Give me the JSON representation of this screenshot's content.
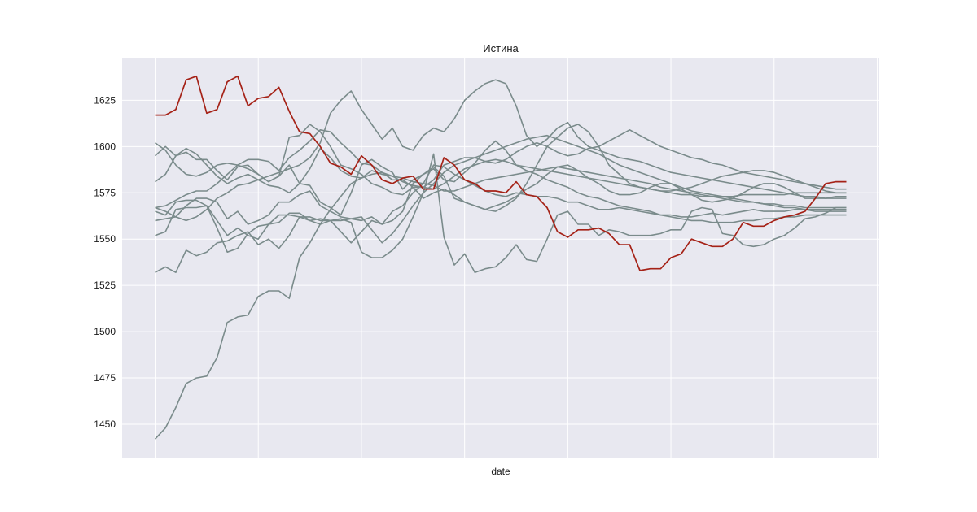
{
  "chart_data": {
    "type": "line",
    "title": "Истина",
    "xlabel": "date",
    "ylabel": "",
    "ylim": [
      1432,
      1648
    ],
    "yticks": [
      1450,
      1475,
      1500,
      1525,
      1550,
      1575,
      1600,
      1625
    ],
    "x": [
      0,
      1,
      2,
      3,
      4,
      5,
      6,
      7,
      8,
      9,
      10,
      11,
      12,
      13,
      14,
      15,
      16,
      17,
      18,
      19,
      20,
      21,
      22,
      23,
      24,
      25,
      26,
      27,
      28,
      29,
      30,
      31,
      32,
      33,
      34,
      35,
      36,
      37,
      38,
      39,
      40,
      41,
      42,
      43,
      44,
      45,
      46,
      47,
      48,
      49,
      50,
      51,
      52,
      53,
      54,
      55,
      56,
      57,
      58,
      59,
      60,
      61,
      62,
      63,
      64,
      65,
      66,
      67
    ],
    "xlim": [
      -3.2,
      70.2
    ],
    "xgrid": [
      0,
      10,
      20,
      30,
      40,
      50,
      60,
      70
    ],
    "grid": true,
    "legend": "none",
    "colors": {
      "background": "#e8e8f0",
      "grid": "#ffffff",
      "sample": "#7a8b8b",
      "truth": "#a52217"
    },
    "series": [
      {
        "role": "sample",
        "values": [
          1442,
          1448,
          1459,
          1472,
          1475,
          1476,
          1486,
          1505,
          1508,
          1509,
          1519,
          1522,
          1522,
          1518,
          1540,
          1548,
          1558,
          1566,
          1573,
          1580,
          1583,
          1587,
          1585,
          1584,
          1583,
          1581,
          1580,
          1579,
          1576,
          1576,
          1578,
          1580,
          1582,
          1583,
          1584,
          1585,
          1586,
          1587,
          1588,
          1589,
          1588,
          1587,
          1586,
          1585,
          1584,
          1583,
          1582,
          1581,
          1580,
          1578,
          1577,
          1576,
          1575,
          1574,
          1573,
          1572,
          1571,
          1570,
          1570,
          1569,
          1569,
          1568,
          1568,
          1567,
          1567,
          1567,
          1567,
          1567
        ]
      },
      {
        "role": "sample",
        "values": [
          1532,
          1535,
          1532,
          1544,
          1541,
          1543,
          1548,
          1549,
          1552,
          1554,
          1547,
          1550,
          1545,
          1552,
          1562,
          1562,
          1560,
          1560,
          1561,
          1559,
          1543,
          1540,
          1540,
          1544,
          1550,
          1562,
          1575,
          1596,
          1551,
          1536,
          1542,
          1532,
          1534,
          1535,
          1540,
          1547,
          1539,
          1538,
          1550,
          1563,
          1565,
          1558,
          1558,
          1552,
          1555,
          1554,
          1552,
          1552,
          1552,
          1553,
          1555,
          1555,
          1565,
          1567,
          1566,
          1553,
          1552,
          1547,
          1546,
          1547,
          1550,
          1552,
          1556,
          1561,
          1562,
          1564,
          1567,
          1567
        ]
      },
      {
        "role": "sample",
        "values": [
          1552,
          1554,
          1566,
          1567,
          1567,
          1568,
          1560,
          1552,
          1556,
          1552,
          1550,
          1558,
          1559,
          1564,
          1564,
          1560,
          1561,
          1560,
          1554,
          1548,
          1554,
          1560,
          1558,
          1565,
          1568,
          1575,
          1580,
          1590,
          1589,
          1585,
          1582,
          1579,
          1576,
          1574,
          1573,
          1575,
          1574,
          1573,
          1573,
          1572,
          1570,
          1570,
          1568,
          1566,
          1566,
          1567,
          1566,
          1565,
          1564,
          1563,
          1563,
          1562,
          1562,
          1563,
          1564,
          1563,
          1564,
          1565,
          1566,
          1565,
          1565,
          1565,
          1566,
          1566,
          1565,
          1565,
          1565,
          1565
        ]
      },
      {
        "role": "sample",
        "values": [
          1560,
          1561,
          1562,
          1568,
          1572,
          1572,
          1570,
          1561,
          1565,
          1558,
          1560,
          1563,
          1570,
          1570,
          1574,
          1576,
          1568,
          1565,
          1562,
          1561,
          1560,
          1562,
          1558,
          1560,
          1565,
          1580,
          1585,
          1589,
          1584,
          1572,
          1570,
          1568,
          1566,
          1568,
          1570,
          1573,
          1577,
          1580,
          1585,
          1589,
          1590,
          1587,
          1583,
          1580,
          1576,
          1574,
          1574,
          1575,
          1578,
          1580,
          1580,
          1577,
          1574,
          1571,
          1570,
          1571,
          1572,
          1575,
          1578,
          1580,
          1580,
          1578,
          1575,
          1572,
          1572,
          1572,
          1573,
          1573
        ]
      },
      {
        "role": "sample",
        "values": [
          1567,
          1568,
          1571,
          1574,
          1576,
          1576,
          1580,
          1585,
          1590,
          1593,
          1593,
          1592,
          1587,
          1594,
          1598,
          1603,
          1609,
          1608,
          1602,
          1597,
          1591,
          1590,
          1586,
          1582,
          1582,
          1578,
          1578,
          1582,
          1590,
          1592,
          1594,
          1594,
          1592,
          1591,
          1593,
          1597,
          1600,
          1602,
          1600,
          1597,
          1595,
          1596,
          1599,
          1600,
          1603,
          1606,
          1609,
          1606,
          1603,
          1600,
          1598,
          1596,
          1594,
          1593,
          1591,
          1590,
          1588,
          1586,
          1585,
          1584,
          1583,
          1582,
          1581,
          1580,
          1579,
          1578,
          1577,
          1577
        ]
      },
      {
        "role": "sample",
        "values": [
          1581,
          1585,
          1595,
          1597,
          1593,
          1593,
          1587,
          1582,
          1589,
          1590,
          1585,
          1581,
          1584,
          1590,
          1580,
          1579,
          1570,
          1567,
          1563,
          1575,
          1590,
          1593,
          1589,
          1586,
          1577,
          1582,
          1585,
          1588,
          1582,
          1581,
          1586,
          1591,
          1598,
          1603,
          1598,
          1590,
          1587,
          1585,
          1582,
          1580,
          1578,
          1575,
          1573,
          1572,
          1570,
          1568,
          1567,
          1566,
          1565,
          1563,
          1562,
          1561,
          1560,
          1560,
          1559,
          1559,
          1559,
          1560,
          1560,
          1561,
          1561,
          1562,
          1562,
          1563,
          1563,
          1563,
          1563,
          1563
        ]
      },
      {
        "role": "sample",
        "values": [
          1602,
          1598,
          1590,
          1585,
          1584,
          1586,
          1590,
          1591,
          1590,
          1588,
          1585,
          1581,
          1584,
          1605,
          1606,
          1612,
          1608,
          1600,
          1590,
          1588,
          1585,
          1580,
          1578,
          1575,
          1574,
          1578,
          1572,
          1575,
          1577,
          1574,
          1570,
          1568,
          1566,
          1565,
          1568,
          1572,
          1580,
          1590,
          1600,
          1605,
          1610,
          1612,
          1608,
          1600,
          1590,
          1585,
          1580,
          1578,
          1577,
          1576,
          1576,
          1577,
          1578,
          1580,
          1582,
          1584,
          1585,
          1586,
          1587,
          1587,
          1586,
          1584,
          1582,
          1580,
          1578,
          1576,
          1575,
          1575
        ]
      },
      {
        "role": "sample",
        "values": [
          1595,
          1600,
          1595,
          1599,
          1596,
          1590,
          1584,
          1580,
          1583,
          1585,
          1582,
          1579,
          1578,
          1575,
          1580,
          1588,
          1599,
          1594,
          1587,
          1584,
          1583,
          1585,
          1586,
          1584,
          1581,
          1579,
          1578,
          1577,
          1580,
          1584,
          1588,
          1590,
          1592,
          1593,
          1592,
          1590,
          1589,
          1588,
          1587,
          1586,
          1585,
          1584,
          1583,
          1582,
          1581,
          1580,
          1579,
          1578,
          1577,
          1576,
          1575,
          1574,
          1574,
          1573,
          1573,
          1573,
          1573,
          1574,
          1574,
          1574,
          1574,
          1574,
          1575,
          1575,
          1575,
          1575,
          1575,
          1575
        ]
      },
      {
        "role": "sample",
        "values": [
          1565,
          1563,
          1570,
          1571,
          1571,
          1568,
          1556,
          1543,
          1545,
          1553,
          1557,
          1558,
          1563,
          1563,
          1562,
          1560,
          1558,
          1560,
          1560,
          1561,
          1562,
          1555,
          1548,
          1553,
          1560,
          1568,
          1575,
          1580,
          1586,
          1590,
          1592,
          1594,
          1596,
          1598,
          1600,
          1602,
          1604,
          1605,
          1606,
          1604,
          1602,
          1600,
          1598,
          1596,
          1593,
          1590,
          1588,
          1586,
          1584,
          1582,
          1580,
          1578,
          1576,
          1575,
          1574,
          1573,
          1572,
          1571,
          1570,
          1569,
          1568,
          1567,
          1567,
          1566,
          1566,
          1566,
          1566,
          1566
        ]
      },
      {
        "role": "sample",
        "values": [
          1567,
          1565,
          1562,
          1560,
          1562,
          1566,
          1572,
          1575,
          1579,
          1580,
          1582,
          1584,
          1586,
          1588,
          1590,
          1594,
          1602,
          1618,
          1625,
          1630,
          1620,
          1612,
          1604,
          1610,
          1600,
          1598,
          1606,
          1610,
          1608,
          1615,
          1625,
          1630,
          1634,
          1636,
          1634,
          1622,
          1606,
          1600,
          1604,
          1610,
          1613,
          1605,
          1600,
          1598,
          1596,
          1594,
          1593,
          1592,
          1590,
          1588,
          1586,
          1585,
          1584,
          1583,
          1582,
          1581,
          1580,
          1579,
          1578,
          1577,
          1576,
          1575,
          1574,
          1573,
          1573,
          1572,
          1572,
          1572
        ]
      },
      {
        "role": "truth",
        "values": [
          1617,
          1617,
          1620,
          1636,
          1638,
          1618,
          1620,
          1635,
          1638,
          1622,
          1626,
          1627,
          1632,
          1619,
          1608,
          1607,
          1600,
          1591,
          1589,
          1585,
          1595,
          1590,
          1582,
          1580,
          1583,
          1584,
          1577,
          1577,
          1594,
          1590,
          1582,
          1580,
          1576,
          1576,
          1575,
          1581,
          1574,
          1573,
          1567,
          1554,
          1551,
          1555,
          1555,
          1556,
          1553,
          1547,
          1547,
          1533,
          1534,
          1534,
          1540,
          1542,
          1550,
          1548,
          1546,
          1546,
          1550,
          1559,
          1557,
          1557,
          1560,
          1562,
          1563,
          1565,
          1572,
          1580,
          1581,
          1581
        ]
      }
    ]
  }
}
